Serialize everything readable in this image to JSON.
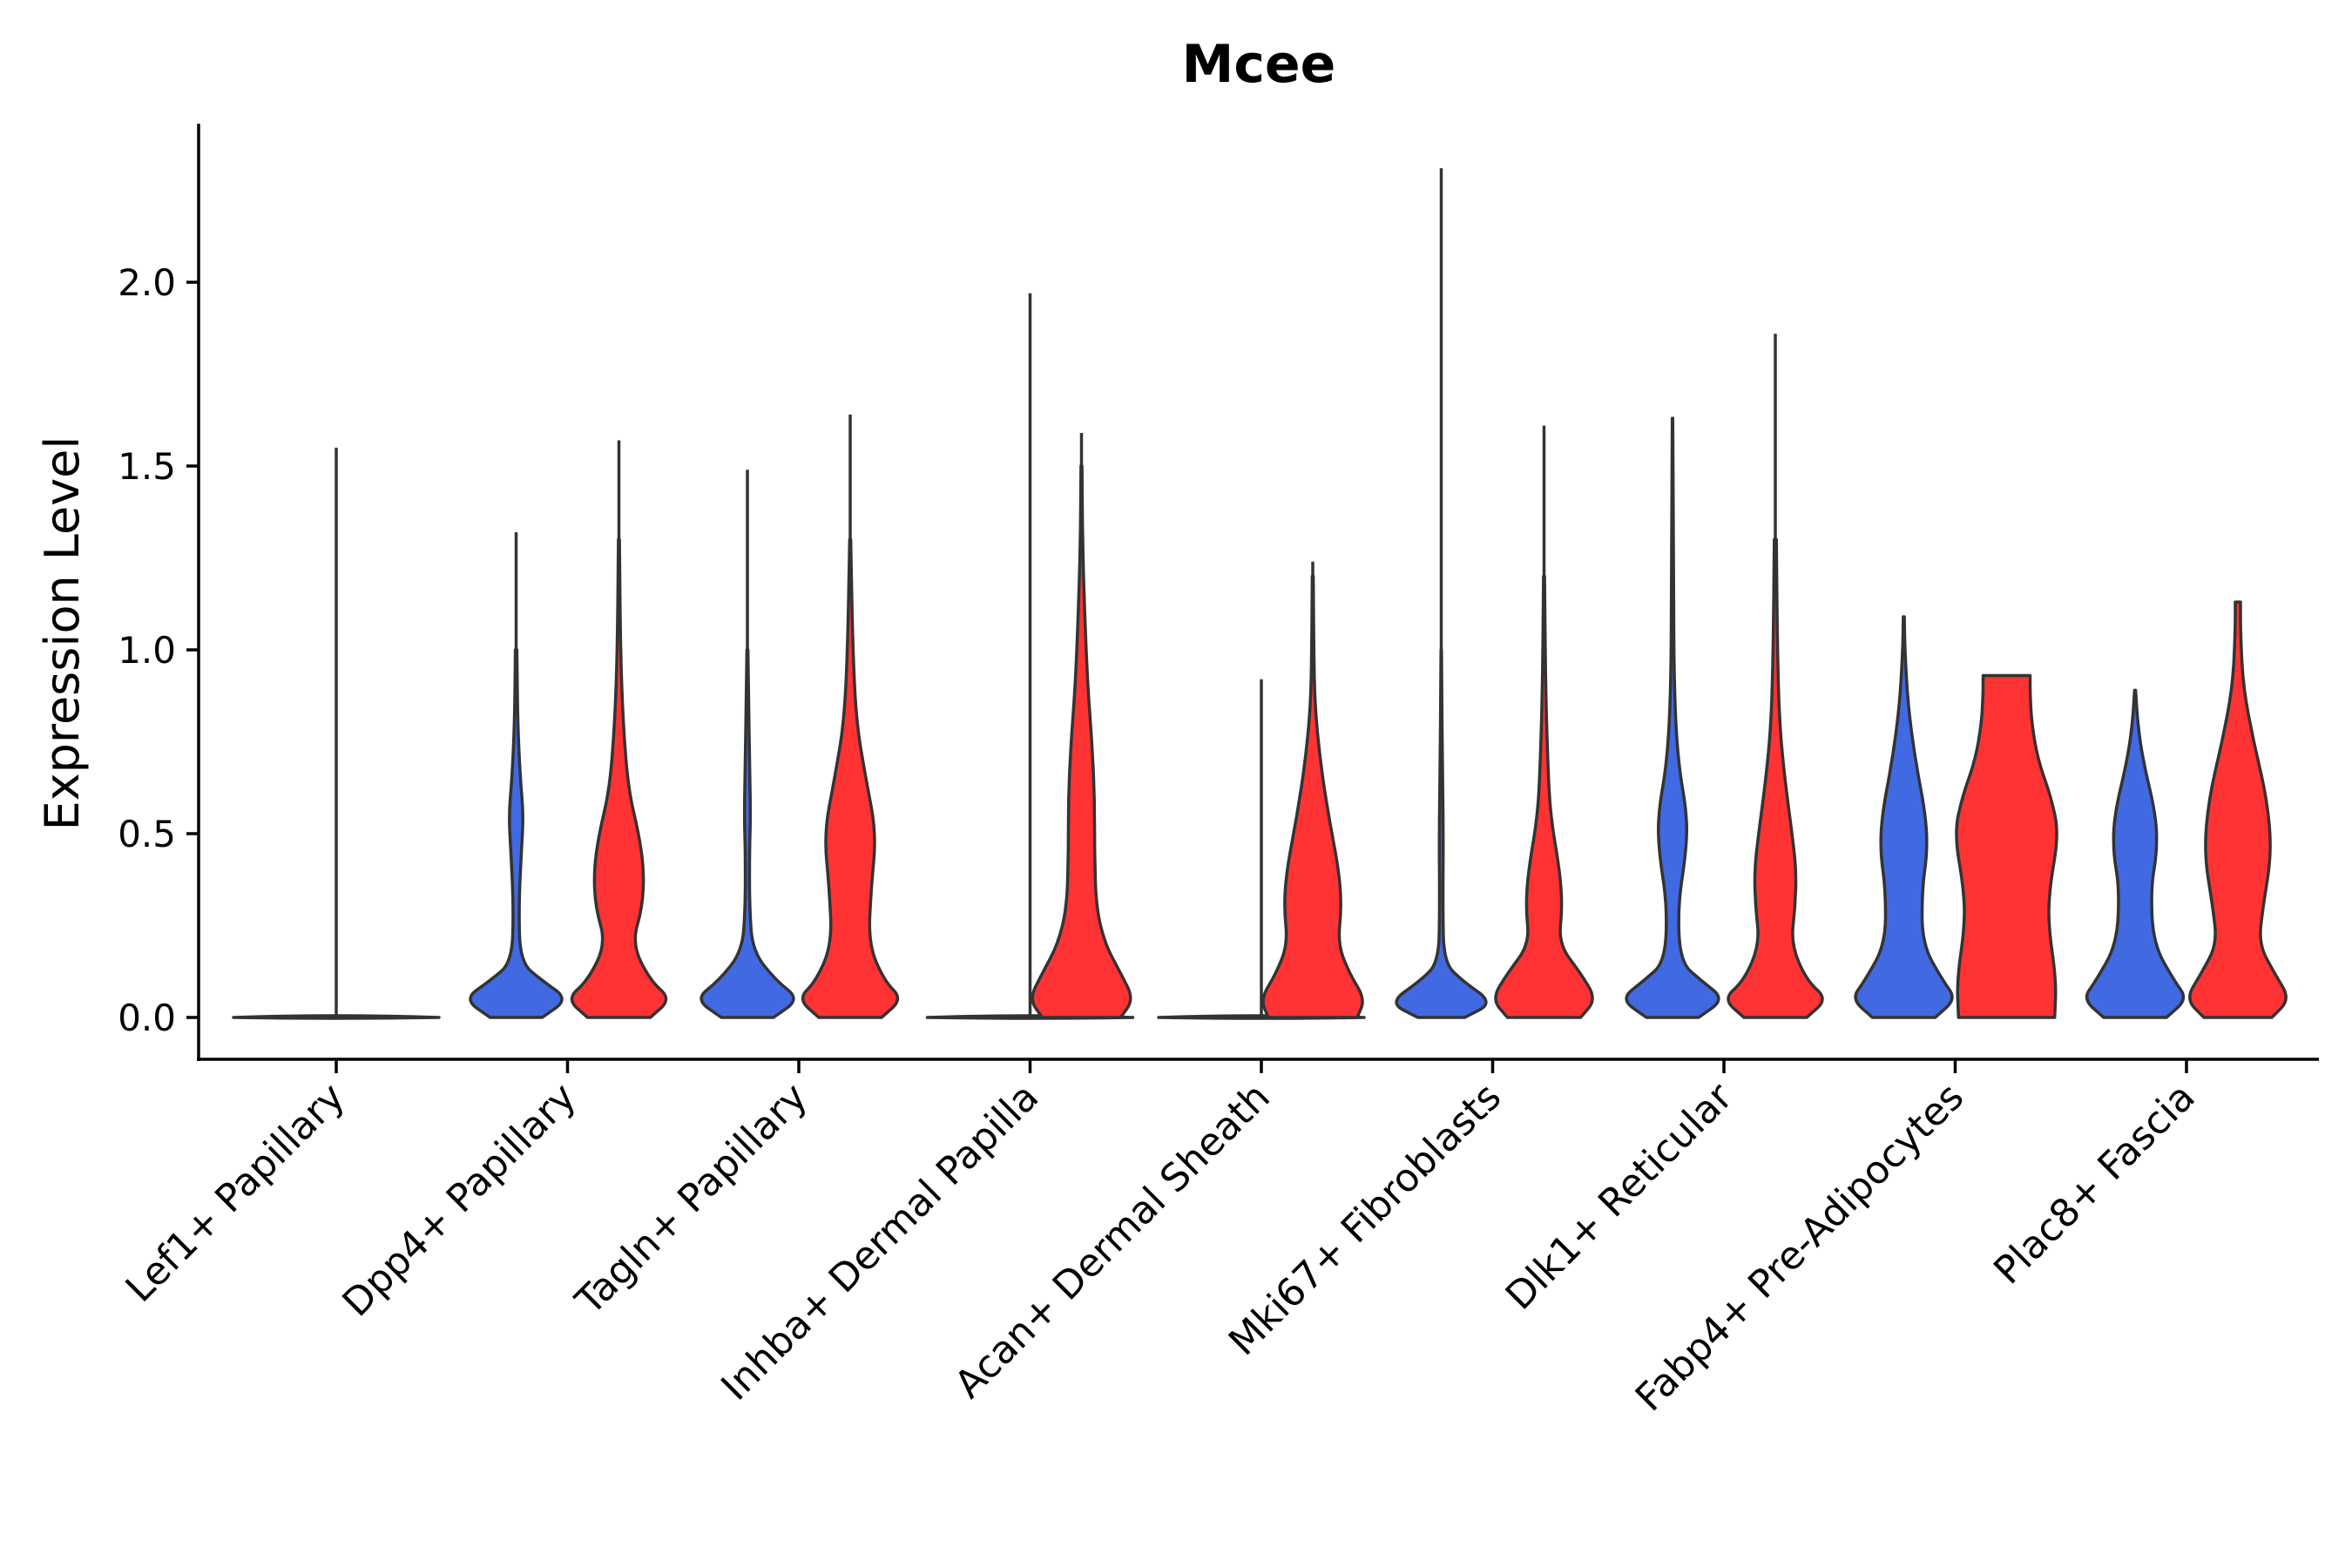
{
  "chart_data": {
    "type": "violin",
    "title": "Mcee",
    "xlabel": "",
    "ylabel": "Expression Level",
    "ylim": [
      -0.12,
      2.42
    ],
    "yticks": [
      "0.0",
      "0.5",
      "1.0",
      "1.5",
      "2.0"
    ],
    "grid": false,
    "legend": "none",
    "colors": {
      "series_a": "#4169E1",
      "series_b": "#FF3333",
      "outline": "#333333",
      "axis": "#000000"
    },
    "categories": [
      "Lef1+ Papillary",
      "Dpp4+ Papillary",
      "Tagln+ Papillary",
      "Inhba+ Dermal Papilla",
      "Acan+ Dermal Sheath",
      "Mki67+ Fibroblasts",
      "Dlk1+ Reticular",
      "Fabp4+ Pre-Adipocytes",
      "Plac8+ Fascia"
    ],
    "series": [
      {
        "name": "blue",
        "max": [
          1.55,
          1.32,
          1.49,
          1.97,
          0.92,
          2.31,
          1.63,
          1.09,
          0.89
        ],
        "profiles": [
          [
            [
              0,
              1.0
            ],
            [
              0.02,
              0.2
            ],
            [
              0.05,
              0.02
            ],
            [
              0.1,
              0
            ]
          ],
          [
            [
              0,
              0.5
            ],
            [
              0.05,
              1.0
            ],
            [
              0.1,
              0.5
            ],
            [
              0.15,
              0.08
            ],
            [
              0.3,
              0.05
            ],
            [
              0.45,
              0.1
            ],
            [
              0.55,
              0.14
            ],
            [
              0.65,
              0.08
            ],
            [
              0.8,
              0.03
            ],
            [
              1.0,
              0.015
            ]
          ],
          [
            [
              0,
              0.5
            ],
            [
              0.05,
              1.0
            ],
            [
              0.1,
              0.55
            ],
            [
              0.18,
              0.1
            ],
            [
              0.3,
              0.04
            ],
            [
              0.45,
              0.04
            ],
            [
              0.55,
              0.06
            ],
            [
              0.7,
              0.04
            ],
            [
              0.9,
              0.02
            ],
            [
              1.0,
              0.01
            ]
          ],
          [
            [
              0,
              1.0
            ],
            [
              0.02,
              0.2
            ],
            [
              0.05,
              0.02
            ],
            [
              0.1,
              0
            ]
          ],
          [
            [
              0,
              1.0
            ],
            [
              0.02,
              0.2
            ],
            [
              0.05,
              0.02
            ],
            [
              0.1,
              0
            ]
          ],
          [
            [
              0,
              0.45
            ],
            [
              0.04,
              1.0
            ],
            [
              0.1,
              0.4
            ],
            [
              0.15,
              0.05
            ],
            [
              0.3,
              0.03
            ],
            [
              0.5,
              0.04
            ],
            [
              0.7,
              0.02
            ],
            [
              0.9,
              0.01
            ],
            [
              1.0,
              0.005
            ]
          ],
          [
            [
              0,
              0.5
            ],
            [
              0.05,
              1.0
            ],
            [
              0.1,
              0.55
            ],
            [
              0.15,
              0.15
            ],
            [
              0.3,
              0.1
            ],
            [
              0.45,
              0.26
            ],
            [
              0.55,
              0.28
            ],
            [
              0.7,
              0.1
            ],
            [
              0.9,
              0.03
            ],
            [
              1.2,
              0.02
            ],
            [
              1.63,
              0.005
            ]
          ],
          [
            [
              0,
              0.6
            ],
            [
              0.05,
              1.0
            ],
            [
              0.1,
              0.75
            ],
            [
              0.2,
              0.35
            ],
            [
              0.35,
              0.35
            ],
            [
              0.45,
              0.45
            ],
            [
              0.55,
              0.42
            ],
            [
              0.7,
              0.22
            ],
            [
              0.85,
              0.08
            ],
            [
              1.0,
              0.02
            ],
            [
              1.09,
              0.01
            ]
          ],
          [
            [
              0,
              0.6
            ],
            [
              0.05,
              1.0
            ],
            [
              0.1,
              0.75
            ],
            [
              0.2,
              0.35
            ],
            [
              0.35,
              0.3
            ],
            [
              0.45,
              0.42
            ],
            [
              0.55,
              0.4
            ],
            [
              0.7,
              0.15
            ],
            [
              0.8,
              0.05
            ],
            [
              0.89,
              0.01
            ]
          ]
        ]
      },
      {
        "name": "red",
        "max": [
          null,
          1.57,
          1.64,
          1.59,
          1.24,
          1.61,
          1.86,
          0.93,
          1.13
        ],
        "profiles": [
          null,
          [
            [
              0,
              0.6
            ],
            [
              0.05,
              1.0
            ],
            [
              0.1,
              0.6
            ],
            [
              0.2,
              0.25
            ],
            [
              0.3,
              0.45
            ],
            [
              0.4,
              0.48
            ],
            [
              0.5,
              0.38
            ],
            [
              0.62,
              0.18
            ],
            [
              0.8,
              0.08
            ],
            [
              1.0,
              0.03
            ],
            [
              1.3,
              0.01
            ]
          ],
          [
            [
              0,
              0.6
            ],
            [
              0.05,
              1.0
            ],
            [
              0.1,
              0.65
            ],
            [
              0.2,
              0.35
            ],
            [
              0.35,
              0.4
            ],
            [
              0.5,
              0.5
            ],
            [
              0.65,
              0.3
            ],
            [
              0.8,
              0.12
            ],
            [
              1.0,
              0.05
            ],
            [
              1.3,
              0.01
            ]
          ],
          [
            [
              0,
              0.75
            ],
            [
              0.05,
              1.0
            ],
            [
              0.12,
              0.75
            ],
            [
              0.2,
              0.45
            ],
            [
              0.3,
              0.28
            ],
            [
              0.45,
              0.25
            ],
            [
              0.6,
              0.25
            ],
            [
              0.75,
              0.2
            ],
            [
              0.9,
              0.12
            ],
            [
              1.1,
              0.06
            ],
            [
              1.3,
              0.02
            ],
            [
              1.5,
              0.01
            ]
          ],
          [
            [
              0,
              0.85
            ],
            [
              0.05,
              1.0
            ],
            [
              0.12,
              0.7
            ],
            [
              0.2,
              0.48
            ],
            [
              0.3,
              0.55
            ],
            [
              0.4,
              0.5
            ],
            [
              0.55,
              0.3
            ],
            [
              0.7,
              0.14
            ],
            [
              0.85,
              0.04
            ],
            [
              1.0,
              0.02
            ],
            [
              1.2,
              0.01
            ]
          ],
          [
            [
              0,
              0.7
            ],
            [
              0.05,
              1.0
            ],
            [
              0.12,
              0.7
            ],
            [
              0.2,
              0.28
            ],
            [
              0.3,
              0.35
            ],
            [
              0.4,
              0.3
            ],
            [
              0.55,
              0.12
            ],
            [
              0.7,
              0.07
            ],
            [
              0.9,
              0.03
            ],
            [
              1.2,
              0.01
            ]
          ],
          [
            [
              0,
              0.6
            ],
            [
              0.05,
              1.0
            ],
            [
              0.1,
              0.6
            ],
            [
              0.2,
              0.3
            ],
            [
              0.3,
              0.38
            ],
            [
              0.4,
              0.4
            ],
            [
              0.5,
              0.32
            ],
            [
              0.65,
              0.18
            ],
            [
              0.8,
              0.08
            ],
            [
              1.0,
              0.04
            ],
            [
              1.3,
              0.02
            ]
          ],
          [
            [
              0,
              0.92
            ],
            [
              0.1,
              0.95
            ],
            [
              0.25,
              0.8
            ],
            [
              0.35,
              0.82
            ],
            [
              0.5,
              1.0
            ],
            [
              0.6,
              0.85
            ],
            [
              0.7,
              0.6
            ],
            [
              0.8,
              0.48
            ],
            [
              0.88,
              0.45
            ],
            [
              0.93,
              0.45
            ]
          ],
          [
            [
              0,
              0.65
            ],
            [
              0.05,
              1.0
            ],
            [
              0.12,
              0.7
            ],
            [
              0.2,
              0.4
            ],
            [
              0.3,
              0.48
            ],
            [
              0.45,
              0.65
            ],
            [
              0.6,
              0.55
            ],
            [
              0.75,
              0.3
            ],
            [
              0.9,
              0.1
            ],
            [
              1.05,
              0.05
            ],
            [
              1.13,
              0.05
            ]
          ]
        ]
      }
    ]
  }
}
